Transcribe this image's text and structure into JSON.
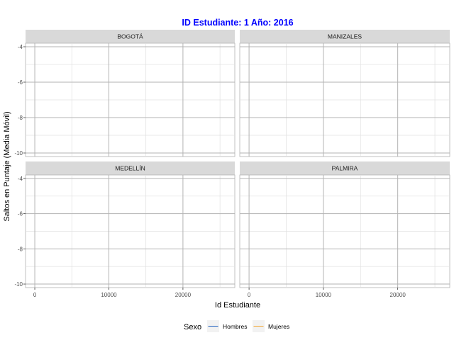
{
  "chart_data": {
    "type": "line",
    "title": "ID Estudiante: 1  Año: 2016",
    "xlabel": "Id Estudiante",
    "ylabel": "Saltos en Puntaje (Media Móvil)",
    "facets": [
      "BOGOTÁ",
      "MANIZALES",
      "MEDELLÍN",
      "PALMIRA"
    ],
    "xlim": [
      -1250,
      27000
    ],
    "ylim": [
      -10.2,
      -3.8
    ],
    "x_ticks": [
      0,
      10000,
      20000
    ],
    "x_tick_labels": [
      "0",
      "10000",
      "20000"
    ],
    "x_minor": [
      5000,
      15000,
      25000
    ],
    "y_ticks": [
      -4,
      -6,
      -8,
      -10
    ],
    "y_tick_labels": [
      "-4",
      "-6",
      "-8",
      "-10"
    ],
    "y_minor": [
      -5,
      -7,
      -9
    ],
    "grid": true,
    "legend_position": "bottom",
    "legend": {
      "title": "Sexo",
      "entries": [
        {
          "label": "Hombres",
          "color": "#1f5fbf"
        },
        {
          "label": "Mujeres",
          "color": "#f2a531"
        }
      ]
    },
    "series": [
      {
        "name": "Hombres",
        "values": []
      },
      {
        "name": "Mujeres",
        "values": []
      }
    ],
    "colors": {
      "title": "#0000ff",
      "strip_bg": "#d9d9d9",
      "panel_bg": "#ffffff",
      "grid_major": "#b3b3b3",
      "grid_minor": "#e0e0e0",
      "panel_border": "#b3b3b3"
    }
  }
}
